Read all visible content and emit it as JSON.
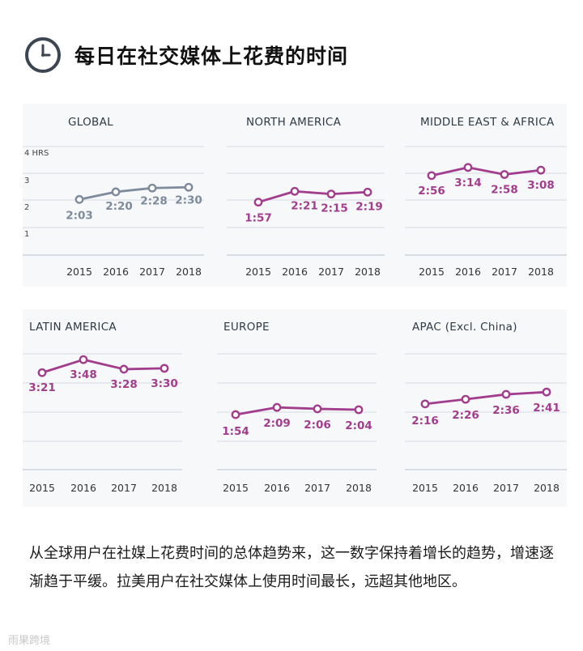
{
  "header": {
    "title": "每日在社交媒体上花费的时间",
    "icon": "clock-icon"
  },
  "colors": {
    "gray_series": "#7d8b9c",
    "purple_series": "#a23d8e",
    "grid": "#d7dde3",
    "panel_bg": "#f6f8fa"
  },
  "y_axis_labels": [
    "4 HRS",
    "3",
    "2",
    "1"
  ],
  "chart_data": [
    {
      "type": "line",
      "title": "GLOBAL",
      "categories": [
        "2015",
        "2016",
        "2017",
        "2018"
      ],
      "values": [
        2.05,
        2.33,
        2.47,
        2.5
      ],
      "labels": [
        "2:03",
        "2:20",
        "2:28",
        "2:30"
      ],
      "color": "gray",
      "ylim": [
        0,
        4
      ]
    },
    {
      "type": "line",
      "title": "NORTH AMERICA",
      "categories": [
        "2015",
        "2016",
        "2017",
        "2018"
      ],
      "values": [
        1.95,
        2.35,
        2.25,
        2.32
      ],
      "labels": [
        "1:57",
        "2:21",
        "2:15",
        "2:19"
      ],
      "color": "purple",
      "ylim": [
        0,
        4
      ]
    },
    {
      "type": "line",
      "title": "MIDDLE EAST & AFRICA",
      "categories": [
        "2015",
        "2016",
        "2017",
        "2018"
      ],
      "values": [
        2.93,
        3.23,
        2.97,
        3.13
      ],
      "labels": [
        "2:56",
        "3:14",
        "2:58",
        "3:08"
      ],
      "color": "purple",
      "ylim": [
        0,
        4
      ]
    },
    {
      "type": "line",
      "title": "LATIN AMERICA",
      "categories": [
        "2015",
        "2016",
        "2017",
        "2018"
      ],
      "values": [
        3.35,
        3.8,
        3.47,
        3.5
      ],
      "labels": [
        "3:21",
        "3:48",
        "3:28",
        "3:30"
      ],
      "color": "purple",
      "ylim": [
        0,
        4
      ]
    },
    {
      "type": "line",
      "title": "EUROPE",
      "categories": [
        "2015",
        "2016",
        "2017",
        "2018"
      ],
      "values": [
        1.9,
        2.15,
        2.1,
        2.07
      ],
      "labels": [
        "1:54",
        "2:09",
        "2:06",
        "2:04"
      ],
      "color": "purple",
      "ylim": [
        0,
        4
      ]
    },
    {
      "type": "line",
      "title": "APAC  (Excl. China)",
      "categories": [
        "2015",
        "2016",
        "2017",
        "2018"
      ],
      "values": [
        2.27,
        2.43,
        2.6,
        2.68
      ],
      "labels": [
        "2:16",
        "2:26",
        "2:36",
        "2:41"
      ],
      "color": "purple",
      "ylim": [
        0,
        4
      ]
    }
  ],
  "paragraph": "从全球用户在社媒上花费时间的总体趋势来，这一数字保持着增长的趋势，增速逐渐趋于平缓。拉美用户在社交媒体上使用时间最长，远超其他地区。",
  "watermark": "雨果跨境"
}
